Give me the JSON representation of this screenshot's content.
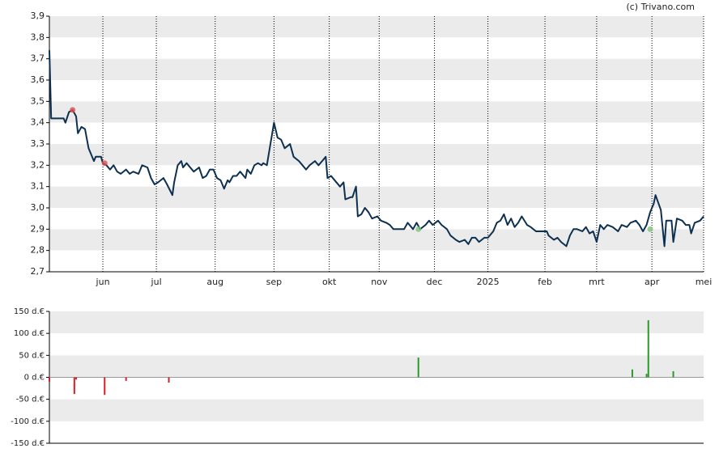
{
  "credit": "(c) Trivano.com",
  "chart_data": [
    {
      "type": "line",
      "color": "#0d3050",
      "line_width": 2,
      "x": [
        0,
        1,
        8,
        9,
        11,
        13,
        15,
        16,
        18,
        20,
        22,
        25,
        26,
        29,
        30,
        32,
        34,
        36,
        38,
        40,
        43,
        45,
        47,
        50,
        52,
        55,
        57,
        59,
        61,
        64,
        66,
        69,
        70,
        72,
        74,
        75,
        77,
        79,
        81,
        84,
        86,
        88,
        90,
        92,
        94,
        96,
        98,
        100,
        101,
        103,
        105,
        107,
        110,
        111,
        113,
        115,
        117,
        119,
        120,
        122,
        124,
        126,
        128,
        130,
        132,
        135,
        137,
        140,
        142,
        144,
        146,
        149,
        151,
        153,
        155,
        156,
        158,
        160,
        163,
        165,
        166,
        169,
        170,
        172,
        173,
        175,
        177,
        179,
        181,
        184,
        186,
        189,
        191,
        193,
        196,
        199,
        201,
        204,
        206,
        208,
        211,
        213,
        215,
        218,
        220,
        223,
        225,
        228,
        230,
        233,
        235,
        237,
        239,
        241,
        244,
        246,
        249,
        251,
        253,
        255,
        257,
        259,
        261,
        263,
        265,
        268,
        270,
        273,
        276,
        279,
        280,
        283,
        285,
        287,
        290,
        292,
        294,
        296,
        299,
        301,
        303,
        305,
        307,
        309,
        311,
        313,
        316,
        319,
        321,
        324,
        326,
        329,
        331,
        333,
        335,
        337,
        339,
        340,
        343,
        345,
        346,
        349,
        350,
        352,
        355,
        357,
        359,
        360,
        362,
        365,
        367
      ],
      "values": [
        3.74,
        3.42,
        3.42,
        3.4,
        3.45,
        3.46,
        3.43,
        3.35,
        3.38,
        3.37,
        3.28,
        3.22,
        3.24,
        3.24,
        3.21,
        3.2,
        3.18,
        3.2,
        3.17,
        3.16,
        3.18,
        3.16,
        3.17,
        3.16,
        3.2,
        3.19,
        3.14,
        3.11,
        3.12,
        3.14,
        3.11,
        3.06,
        3.12,
        3.2,
        3.22,
        3.19,
        3.21,
        3.19,
        3.17,
        3.19,
        3.14,
        3.15,
        3.18,
        3.18,
        3.14,
        3.13,
        3.09,
        3.13,
        3.12,
        3.15,
        3.15,
        3.17,
        3.14,
        3.18,
        3.16,
        3.2,
        3.21,
        3.2,
        3.21,
        3.2,
        3.3,
        3.4,
        3.33,
        3.32,
        3.28,
        3.3,
        3.24,
        3.22,
        3.2,
        3.18,
        3.2,
        3.22,
        3.2,
        3.22,
        3.24,
        3.14,
        3.15,
        3.13,
        3.1,
        3.12,
        3.04,
        3.05,
        3.05,
        3.1,
        2.96,
        2.97,
        3.0,
        2.98,
        2.95,
        2.96,
        2.94,
        2.93,
        2.92,
        2.9,
        2.9,
        2.9,
        2.93,
        2.9,
        2.93,
        2.9,
        2.92,
        2.94,
        2.92,
        2.94,
        2.92,
        2.9,
        2.87,
        2.85,
        2.84,
        2.85,
        2.83,
        2.86,
        2.86,
        2.84,
        2.86,
        2.86,
        2.89,
        2.93,
        2.94,
        2.97,
        2.92,
        2.95,
        2.91,
        2.93,
        2.96,
        2.92,
        2.91,
        2.89,
        2.89,
        2.89,
        2.87,
        2.85,
        2.86,
        2.84,
        2.82,
        2.87,
        2.9,
        2.9,
        2.89,
        2.91,
        2.88,
        2.89,
        2.84,
        2.92,
        2.9,
        2.92,
        2.91,
        2.89,
        2.92,
        2.91,
        2.93,
        2.94,
        2.92,
        2.89,
        2.92,
        2.98,
        3.02,
        3.06,
        2.99,
        2.82,
        2.94,
        2.94,
        2.84,
        2.95,
        2.94,
        2.92,
        2.92,
        2.88,
        2.93,
        2.94,
        2.96
      ],
      "markers": {
        "x": [
          13,
          31,
          207,
          337
        ],
        "values": [
          3.46,
          3.21,
          2.9,
          2.9
        ],
        "colors": [
          "#e05050",
          "#e05050",
          "#7cc47c",
          "#7cc47c"
        ]
      },
      "xlim": [
        0,
        367
      ],
      "ylim": [
        2.7,
        3.9
      ],
      "xticks": [
        {
          "value": 30,
          "label": "jun"
        },
        {
          "value": 60,
          "label": "jul"
        },
        {
          "value": 93,
          "label": "aug"
        },
        {
          "value": 126,
          "label": "sep"
        },
        {
          "value": 157,
          "label": "okt"
        },
        {
          "value": 185,
          "label": "nov"
        },
        {
          "value": 216,
          "label": "dec"
        },
        {
          "value": 246,
          "label": "2025"
        },
        {
          "value": 278,
          "label": "feb"
        },
        {
          "value": 307,
          "label": "mrt"
        },
        {
          "value": 338,
          "label": "apr"
        },
        {
          "value": 367,
          "label": "mei"
        }
      ],
      "yticks": [
        {
          "value": 2.7,
          "label": "2,7"
        },
        {
          "value": 2.8,
          "label": "2,8"
        },
        {
          "value": 2.9,
          "label": "2,9"
        },
        {
          "value": 3.0,
          "label": "3,0"
        },
        {
          "value": 3.1,
          "label": "3,1"
        },
        {
          "value": 3.2,
          "label": "3,2"
        },
        {
          "value": 3.3,
          "label": "3,3"
        },
        {
          "value": 3.4,
          "label": "3,4"
        },
        {
          "value": 3.5,
          "label": "3,5"
        },
        {
          "value": 3.6,
          "label": "3,6"
        },
        {
          "value": 3.7,
          "label": "3,7"
        },
        {
          "value": 3.8,
          "label": "3,8"
        },
        {
          "value": 3.9,
          "label": "3,9"
        }
      ]
    },
    {
      "type": "bar",
      "positive_color": "#2a9a2a",
      "negative_color": "#d0202a",
      "x": [
        0,
        14,
        15,
        31,
        43,
        67,
        207,
        327,
        335,
        336,
        350
      ],
      "values": [
        -10,
        -38,
        -5,
        -40,
        -8,
        -12,
        45,
        18,
        8,
        130,
        14
      ],
      "xlim": [
        0,
        367
      ],
      "ylim": [
        -150,
        150
      ],
      "yticks": [
        {
          "value": -150,
          "label": "-150 d.€"
        },
        {
          "value": -100,
          "label": "-100 d.€"
        },
        {
          "value": -50,
          "label": "-50 d.€"
        },
        {
          "value": 0,
          "label": "0 d.€"
        },
        {
          "value": 50,
          "label": "50 d.€"
        },
        {
          "value": 100,
          "label": "100 d.€"
        },
        {
          "value": 150,
          "label": "150 d.€"
        }
      ]
    }
  ]
}
